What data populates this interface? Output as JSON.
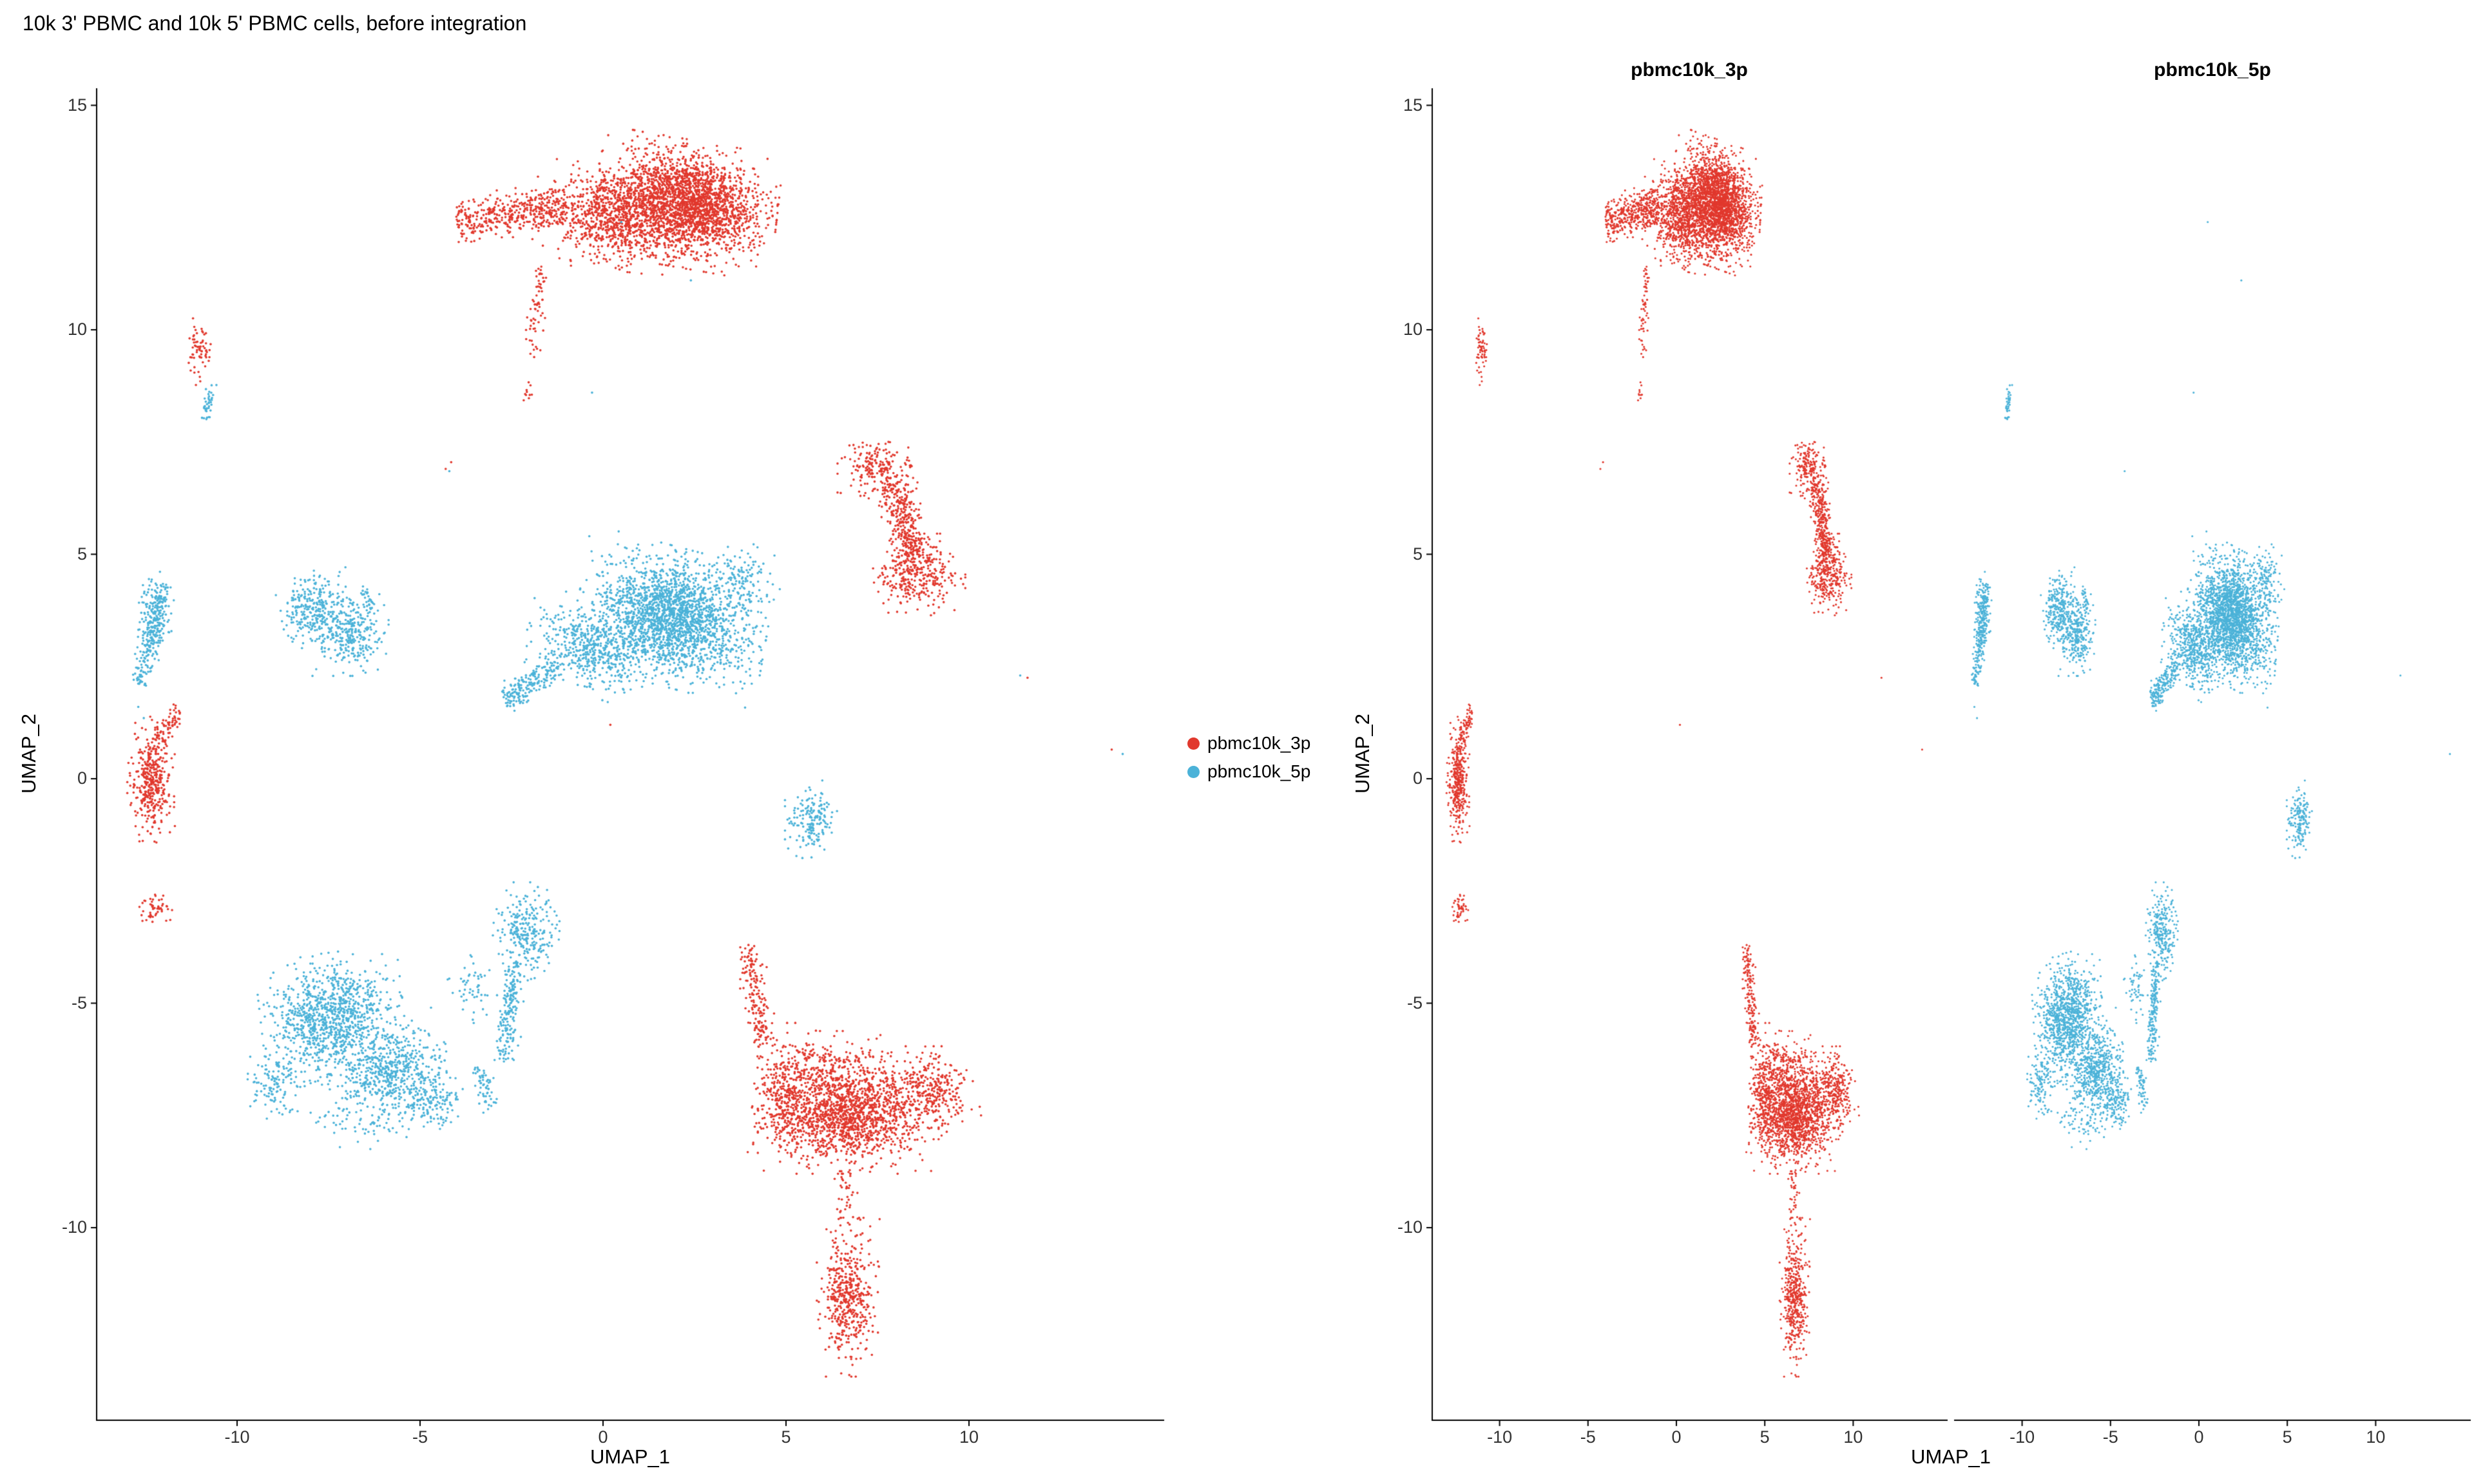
{
  "left_plot": {
    "title": "10k 3' PBMC and 10k 5' PBMC cells, before integration",
    "xlabel": "UMAP_1",
    "ylabel": "UMAP_2"
  },
  "right_plot": {
    "xlabel": "UMAP_1",
    "ylabel": "UMAP_2",
    "facet_titles": [
      "pbmc10k_3p",
      "pbmc10k_5p"
    ]
  },
  "legend": {
    "items": [
      {
        "label": "pbmc10k_3p",
        "color": "#E1382D"
      },
      {
        "label": "pbmc10k_5p",
        "color": "#4BB2D8"
      }
    ]
  },
  "chart_data": {
    "type": "scatter",
    "title": "10k 3' PBMC and 10k 5' PBMC cells, before integration",
    "xlabel": "UMAP_1",
    "ylabel": "UMAP_2",
    "xlim": [
      -13.9,
      15.3
    ],
    "ylim": [
      -14.3,
      15.4
    ],
    "x_ticks": [
      -10,
      -5,
      0,
      5,
      10
    ],
    "y_ticks": [
      15,
      10,
      5,
      0,
      -5,
      -10
    ],
    "grid": false,
    "legend_position": "right-of-left-panel",
    "facets": [
      "pbmc10k_3p",
      "pbmc10k_5p"
    ],
    "series": [
      {
        "name": "pbmc10k_3p",
        "color": "#E1382D",
        "clusters": [
          {
            "kind": "gauss",
            "cx": 2.3,
            "cy": 12.8,
            "sx": 0.95,
            "sy": 0.55,
            "rot": -8,
            "n": 2400
          },
          {
            "kind": "gauss",
            "cx": 0.2,
            "cy": 12.5,
            "sx": 0.8,
            "sy": 0.45,
            "rot": -5,
            "n": 800
          },
          {
            "kind": "line",
            "x1": -1.0,
            "y1": 12.75,
            "x2": -4.0,
            "y2": 12.4,
            "w": 0.22,
            "n": 420
          },
          {
            "kind": "line",
            "x1": -1.65,
            "y1": 11.4,
            "x2": -2.0,
            "y2": 9.4,
            "w": 0.1,
            "n": 65
          },
          {
            "kind": "gauss",
            "cx": -2.05,
            "cy": 8.55,
            "sx": 0.07,
            "sy": 0.12,
            "n": 10
          },
          {
            "kind": "gauss",
            "cx": -11.05,
            "cy": 9.55,
            "sx": 0.15,
            "sy": 0.3,
            "n": 65
          },
          {
            "kind": "gauss",
            "cx": 7.5,
            "cy": 6.9,
            "sx": 0.42,
            "sy": 0.28,
            "n": 190
          },
          {
            "kind": "line",
            "x1": 7.9,
            "y1": 6.6,
            "x2": 8.5,
            "y2": 5.0,
            "w": 0.22,
            "n": 300
          },
          {
            "kind": "gauss",
            "cx": 8.6,
            "cy": 4.55,
            "sx": 0.5,
            "sy": 0.35,
            "n": 330
          },
          {
            "kind": "gauss",
            "cx": -12.35,
            "cy": -0.05,
            "sx": 0.25,
            "sy": 0.55,
            "n": 380
          },
          {
            "kind": "line",
            "x1": -12.2,
            "y1": 0.8,
            "x2": -11.55,
            "y2": 1.55,
            "w": 0.12,
            "n": 70
          },
          {
            "kind": "gauss",
            "cx": -12.2,
            "cy": -2.9,
            "sx": 0.18,
            "sy": 0.15,
            "n": 50
          },
          {
            "kind": "gauss",
            "cx": 6.7,
            "cy": -7.5,
            "sx": 0.95,
            "sy": 0.5,
            "n": 1400
          },
          {
            "kind": "gauss",
            "cx": 4.95,
            "cy": -7.0,
            "sx": 0.4,
            "sy": 0.6,
            "n": 320
          },
          {
            "kind": "line",
            "x1": 4.4,
            "y1": -6.0,
            "x2": 3.95,
            "y2": -3.7,
            "w": 0.16,
            "n": 170
          },
          {
            "kind": "gauss",
            "cx": 6.3,
            "cy": -6.4,
            "sx": 0.8,
            "sy": 0.3,
            "n": 220
          },
          {
            "kind": "gauss",
            "cx": 8.9,
            "cy": -7.0,
            "sx": 0.55,
            "sy": 0.4,
            "n": 320
          },
          {
            "kind": "line",
            "x1": 6.5,
            "y1": -8.7,
            "x2": 6.7,
            "y2": -9.9,
            "w": 0.15,
            "n": 35
          },
          {
            "kind": "gauss",
            "cx": 6.7,
            "cy": -11.55,
            "sx": 0.33,
            "sy": 0.68,
            "n": 480
          },
          {
            "kind": "points",
            "pts": [
              [
                -4.3,
                6.9
              ],
              [
                -4.15,
                7.05
              ],
              [
                13.9,
                0.65
              ],
              [
                11.6,
                2.25
              ],
              [
                0.2,
                1.2
              ]
            ]
          }
        ]
      },
      {
        "name": "pbmc10k_5p",
        "color": "#4BB2D8",
        "clusters": [
          {
            "kind": "line",
            "x1": -12.0,
            "y1": 4.35,
            "x2": -12.65,
            "y2": 2.1,
            "w": 0.14,
            "n": 200
          },
          {
            "kind": "gauss",
            "cx": -12.25,
            "cy": 3.7,
            "sx": 0.2,
            "sy": 0.35,
            "n": 140
          },
          {
            "kind": "points",
            "pts": [
              [
                -12.7,
                1.6
              ],
              [
                -12.55,
                1.35
              ]
            ]
          },
          {
            "kind": "gauss",
            "cx": -7.9,
            "cy": 3.8,
            "sx": 0.4,
            "sy": 0.35,
            "n": 280
          },
          {
            "kind": "gauss",
            "cx": -6.9,
            "cy": 3.2,
            "sx": 0.4,
            "sy": 0.35,
            "n": 300
          },
          {
            "kind": "line",
            "x1": -6.6,
            "y1": 4.3,
            "x2": -6.3,
            "y2": 3.8,
            "w": 0.06,
            "n": 25
          },
          {
            "kind": "gauss",
            "cx": 1.9,
            "cy": 3.6,
            "sx": 1.0,
            "sy": 0.6,
            "rot": -12,
            "n": 2100
          },
          {
            "kind": "gauss",
            "cx": -0.3,
            "cy": 2.9,
            "sx": 0.7,
            "sy": 0.4,
            "rot": -15,
            "n": 500
          },
          {
            "kind": "line",
            "x1": -1.2,
            "y1": 2.5,
            "x2": -2.7,
            "y2": 1.75,
            "w": 0.16,
            "n": 190
          },
          {
            "kind": "gauss",
            "cx": 3.8,
            "cy": 4.4,
            "sx": 0.4,
            "sy": 0.35,
            "n": 120
          },
          {
            "kind": "gauss",
            "cx": 5.7,
            "cy": -0.95,
            "sx": 0.28,
            "sy": 0.35,
            "n": 170
          },
          {
            "kind": "gauss",
            "cx": -2.1,
            "cy": -3.4,
            "sx": 0.35,
            "sy": 0.42,
            "n": 260
          },
          {
            "kind": "gauss",
            "cx": -7.4,
            "cy": -5.3,
            "sx": 0.75,
            "sy": 0.55,
            "rot": 8,
            "n": 1000
          },
          {
            "kind": "gauss",
            "cx": -5.9,
            "cy": -6.5,
            "sx": 0.7,
            "sy": 0.45,
            "rot": 10,
            "n": 550
          },
          {
            "kind": "gauss",
            "cx": -4.7,
            "cy": -7.1,
            "sx": 0.35,
            "sy": 0.28,
            "n": 140
          },
          {
            "kind": "gauss",
            "cx": -3.6,
            "cy": -4.6,
            "sx": 0.25,
            "sy": 0.35,
            "n": 50
          },
          {
            "kind": "line",
            "x1": -2.45,
            "y1": -4.1,
            "x2": -2.7,
            "y2": -6.3,
            "w": 0.15,
            "n": 190
          },
          {
            "kind": "line",
            "x1": -3.4,
            "y1": -6.4,
            "x2": -3.1,
            "y2": -7.4,
            "w": 0.12,
            "n": 60
          },
          {
            "kind": "gauss",
            "cx": -8.9,
            "cy": -6.8,
            "sx": 0.35,
            "sy": 0.4,
            "n": 130
          },
          {
            "kind": "gauss",
            "cx": -6.2,
            "cy": -7.6,
            "sx": 0.8,
            "sy": 0.25,
            "n": 80
          },
          {
            "kind": "line",
            "x1": -10.65,
            "y1": 8.8,
            "x2": -10.9,
            "y2": 8.0,
            "w": 0.07,
            "n": 40
          },
          {
            "kind": "points",
            "pts": [
              [
                -4.2,
                6.85
              ],
              [
                11.4,
                2.3
              ],
              [
                14.2,
                0.55
              ],
              [
                0.5,
                12.4
              ],
              [
                2.4,
                11.1
              ],
              [
                -0.3,
                8.6
              ]
            ]
          }
        ]
      }
    ]
  }
}
